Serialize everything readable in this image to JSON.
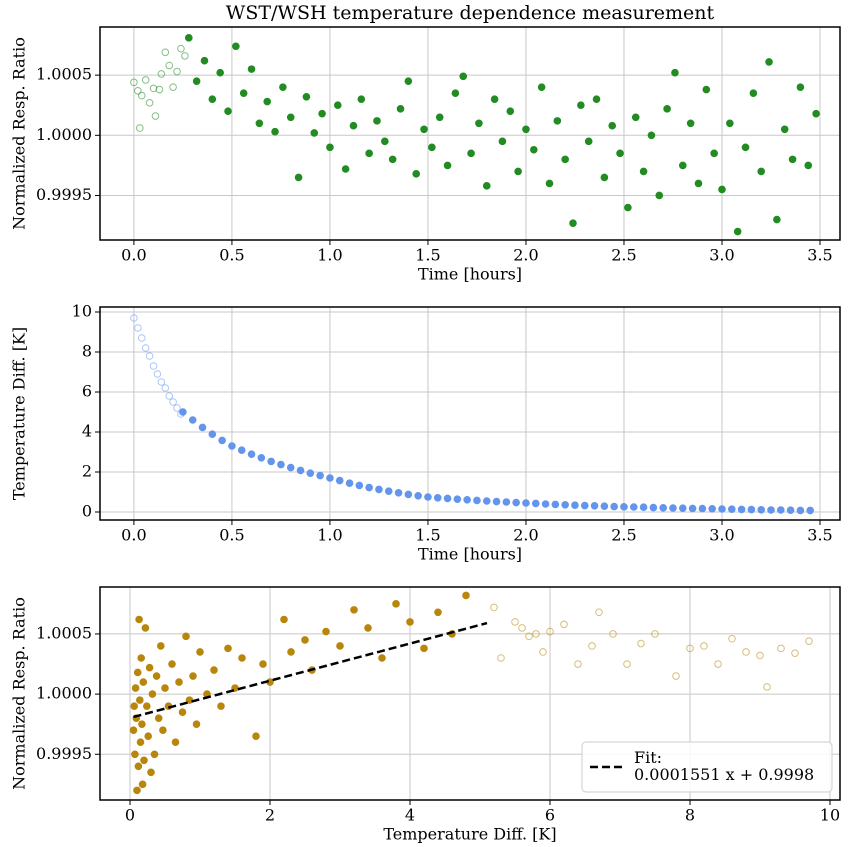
{
  "chart_data": [
    {
      "type": "scatter",
      "title": "WST/WSH temperature dependence measurement",
      "xlabel": "Time [hours]",
      "ylabel": "Normalized Resp. Ratio",
      "xlim": [
        -0.173,
        3.602
      ],
      "ylim": [
        0.99913,
        1.0009
      ],
      "grid": true,
      "xticks": [
        {
          "value": 0,
          "label": "0.0"
        },
        0.5,
        {
          "value": 1,
          "label": "1.0"
        },
        1.5,
        {
          "value": 2,
          "label": "2.0"
        },
        2.5,
        {
          "value": 3,
          "label": "3.0"
        },
        3.5
      ],
      "yticks": [
        0.9995,
        {
          "value": 1,
          "label": "1.0000"
        },
        1.0005
      ],
      "series": [
        {
          "color": "#228b22",
          "filled": false,
          "x": [
            0.0,
            0.02,
            0.03,
            0.04,
            0.06,
            0.08,
            0.1,
            0.11,
            0.13,
            0.14,
            0.16,
            0.18,
            0.2,
            0.22,
            0.24,
            0.26
          ],
          "values": [
            1.00044,
            1.00037,
            1.00006,
            1.00033,
            1.00046,
            1.00027,
            1.00039,
            1.00016,
            1.00038,
            1.00051,
            1.00069,
            1.00058,
            1.0004,
            1.00053,
            1.00072,
            1.00066
          ]
        },
        {
          "color": "#228b22",
          "filled": true,
          "x": [
            0.28,
            0.32,
            0.36,
            0.4,
            0.44,
            0.48,
            0.52,
            0.56,
            0.6,
            0.64,
            0.68,
            0.72,
            0.76,
            0.8,
            0.84,
            0.88,
            0.92,
            0.96,
            1.0,
            1.04,
            1.08,
            1.12,
            1.16,
            1.2,
            1.24,
            1.28,
            1.32,
            1.36,
            1.4,
            1.44,
            1.48,
            1.52,
            1.56,
            1.6,
            1.64,
            1.68,
            1.72,
            1.76,
            1.8,
            1.84,
            1.88,
            1.92,
            1.96,
            2.0,
            2.04,
            2.08,
            2.12,
            2.16,
            2.2,
            2.24,
            2.28,
            2.32,
            2.36,
            2.4,
            2.44,
            2.48,
            2.52,
            2.56,
            2.6,
            2.64,
            2.68,
            2.72,
            2.76,
            2.8,
            2.84,
            2.88,
            2.92,
            2.96,
            3.0,
            3.04,
            3.08,
            3.12,
            3.16,
            3.2,
            3.24,
            3.28,
            3.32,
            3.36,
            3.4,
            3.44,
            3.48
          ],
          "values": [
            1.00081,
            1.00045,
            1.00062,
            1.0003,
            1.00052,
            1.0002,
            1.00074,
            1.00035,
            1.00055,
            1.0001,
            1.00028,
            1.00003,
            1.0004,
            1.00015,
            0.99965,
            1.00032,
            1.00002,
            1.00018,
            0.9999,
            1.00025,
            0.99972,
            1.00008,
            1.0003,
            0.99985,
            1.00012,
            0.99995,
            0.9998,
            1.00022,
            1.00045,
            0.99968,
            1.00005,
            0.9999,
            1.00015,
            0.99975,
            1.00035,
            1.00049,
            0.99985,
            1.0001,
            0.99958,
            1.0003,
            0.99995,
            1.0002,
            0.9997,
            1.00005,
            0.99988,
            1.0004,
            0.9996,
            1.00012,
            0.9998,
            0.99927,
            1.00025,
            0.99995,
            1.0003,
            0.99965,
            1.00008,
            0.99985,
            0.9994,
            1.00015,
            0.9997,
            1.0,
            0.9995,
            1.00022,
            1.00052,
            0.99975,
            1.0001,
            0.9996,
            1.00038,
            0.99985,
            0.99955,
            1.0001,
            0.9992,
            0.9999,
            1.00035,
            0.9997,
            1.00061,
            0.9993,
            1.00005,
            0.9998,
            1.0004,
            0.99975,
            1.00018
          ]
        }
      ]
    },
    {
      "type": "scatter",
      "xlabel": "Time [hours]",
      "ylabel": "Temperature Diff. [K]",
      "xlim": [
        -0.173,
        3.602
      ],
      "ylim": [
        -0.4,
        10.25
      ],
      "grid": true,
      "xticks": [
        {
          "value": 0,
          "label": "0.0"
        },
        0.5,
        {
          "value": 1,
          "label": "1.0"
        },
        1.5,
        {
          "value": 2,
          "label": "2.0"
        },
        2.5,
        {
          "value": 3,
          "label": "3.0"
        },
        3.5
      ],
      "yticks": [
        0,
        2,
        4,
        6,
        8,
        10
      ],
      "series": [
        {
          "color": "#6495ed",
          "filled": false,
          "x": [
            0,
            0.02,
            0.04,
            0.06,
            0.08,
            0.1,
            0.12,
            0.14,
            0.16,
            0.18,
            0.2,
            0.22,
            0.24
          ],
          "values": [
            9.7,
            9.2,
            8.7,
            8.2,
            7.8,
            7.3,
            6.9,
            6.5,
            6.2,
            5.8,
            5.5,
            5.2,
            4.9
          ]
        },
        {
          "color": "#6495ed",
          "filled": true,
          "x": [
            0.25,
            0.3,
            0.35,
            0.4,
            0.45,
            0.5,
            0.55,
            0.6,
            0.65,
            0.7,
            0.75,
            0.8,
            0.85,
            0.9,
            0.95,
            1.0,
            1.05,
            1.1,
            1.15,
            1.2,
            1.25,
            1.3,
            1.35,
            1.4,
            1.45,
            1.5,
            1.55,
            1.6,
            1.65,
            1.7,
            1.75,
            1.8,
            1.85,
            1.9,
            1.95,
            2.0,
            2.05,
            2.1,
            2.15,
            2.2,
            2.25,
            2.3,
            2.35,
            2.4,
            2.45,
            2.5,
            2.55,
            2.6,
            2.65,
            2.7,
            2.75,
            2.8,
            2.85,
            2.9,
            2.95,
            3.0,
            3.05,
            3.1,
            3.15,
            3.2,
            3.25,
            3.3,
            3.35,
            3.4,
            3.45
          ],
          "values": [
            5.0,
            4.6,
            4.23,
            3.89,
            3.58,
            3.3,
            3.09,
            2.89,
            2.71,
            2.53,
            2.37,
            2.22,
            2.08,
            1.94,
            1.82,
            1.7,
            1.57,
            1.44,
            1.33,
            1.22,
            1.13,
            1.04,
            0.96,
            0.88,
            0.81,
            0.75,
            0.71,
            0.68,
            0.64,
            0.61,
            0.58,
            0.55,
            0.52,
            0.5,
            0.47,
            0.45,
            0.43,
            0.4,
            0.38,
            0.36,
            0.34,
            0.32,
            0.31,
            0.29,
            0.27,
            0.26,
            0.25,
            0.24,
            0.22,
            0.21,
            0.2,
            0.19,
            0.18,
            0.17,
            0.16,
            0.15,
            0.14,
            0.13,
            0.12,
            0.11,
            0.1,
            0.1,
            0.09,
            0.08,
            0.08
          ]
        }
      ]
    },
    {
      "type": "scatter",
      "xlabel": "Temperature Diff. [K]",
      "ylabel": "Normalized Resp. Ratio",
      "xlim": [
        -0.4286,
        10.143
      ],
      "ylim": [
        0.99912,
        1.00089
      ],
      "grid": true,
      "legend": "lower right",
      "xticks": [
        0,
        2,
        4,
        6,
        8,
        10
      ],
      "yticks": [
        0.9995,
        {
          "value": 1,
          "label": "1.0000"
        },
        1.0005
      ],
      "series": [
        {
          "color": "#b8860b",
          "filled": true,
          "x": [
            4.8,
            4.6,
            4.4,
            4.2,
            4.0,
            3.8,
            3.6,
            3.4,
            3.2,
            3.0,
            2.8,
            2.6,
            2.5,
            2.3,
            2.2,
            2.0,
            1.9,
            1.8,
            1.6,
            1.5,
            1.4,
            1.3,
            1.2,
            1.1,
            1.0,
            0.95,
            0.9,
            0.85,
            0.8,
            0.75,
            0.7,
            0.65,
            0.6,
            0.55,
            0.5,
            0.47,
            0.44,
            0.41,
            0.38,
            0.35,
            0.32,
            0.3,
            0.28,
            0.26,
            0.24,
            0.22,
            0.2,
            0.19,
            0.18,
            0.17,
            0.16,
            0.15,
            0.14,
            0.13,
            0.12,
            0.11,
            0.1,
            0.09,
            0.08,
            0.07,
            0.06,
            0.05
          ],
          "values": [
            1.00082,
            1.0005,
            1.00068,
            1.00038,
            1.0006,
            1.00075,
            1.0003,
            1.00055,
            1.0007,
            1.0004,
            1.00052,
            1.0002,
            1.00045,
            1.00035,
            1.00062,
            1.0001,
            1.00025,
            0.99965,
            1.0003,
            1.00005,
            1.00038,
            0.9999,
            1.0002,
            1.0,
            1.00035,
            0.99975,
            1.00015,
            0.99995,
            1.00048,
            0.99985,
            1.0001,
            0.9996,
            1.00025,
            0.9999,
            1.00005,
            0.9997,
            1.0004,
            0.9998,
            1.00015,
            0.9995,
            1.0,
            0.99935,
            1.00022,
            0.99965,
            0.9999,
            1.00055,
            0.99945,
            1.0001,
            0.99925,
            0.99975,
            1.0003,
            0.9996,
            0.99995,
            1.00062,
            0.9994,
            1.00018,
            0.9992,
            0.9998,
            1.00005,
            0.9995,
            0.9999,
            0.9997
          ]
        },
        {
          "color": "#b8860b",
          "filled": false,
          "x": [
            5.2,
            5.3,
            5.5,
            5.6,
            5.7,
            5.8,
            5.9,
            6.0,
            6.2,
            6.4,
            6.6,
            6.7,
            6.9,
            7.1,
            7.3,
            7.5,
            7.8,
            8.0,
            8.2,
            8.4,
            8.6,
            8.8,
            9.0,
            9.1,
            9.3,
            9.5,
            9.7
          ],
          "values": [
            1.00072,
            1.0003,
            1.0006,
            1.00055,
            1.00048,
            1.0005,
            1.00035,
            1.00052,
            1.00058,
            1.00025,
            1.0004,
            1.00068,
            1.0005,
            1.00025,
            1.00042,
            1.0005,
            1.00015,
            1.00038,
            1.0004,
            1.00025,
            1.00046,
            1.00035,
            1.00032,
            1.00006,
            1.00038,
            1.00034,
            1.00044
          ]
        },
        {
          "type": "line",
          "name": "Fit:\n0.0001551 x + 0.9998",
          "color": "#000000",
          "dashed": true,
          "x": [
            0.05,
            5.1
          ],
          "values": [
            0.99981,
            1.00059
          ]
        }
      ]
    }
  ]
}
